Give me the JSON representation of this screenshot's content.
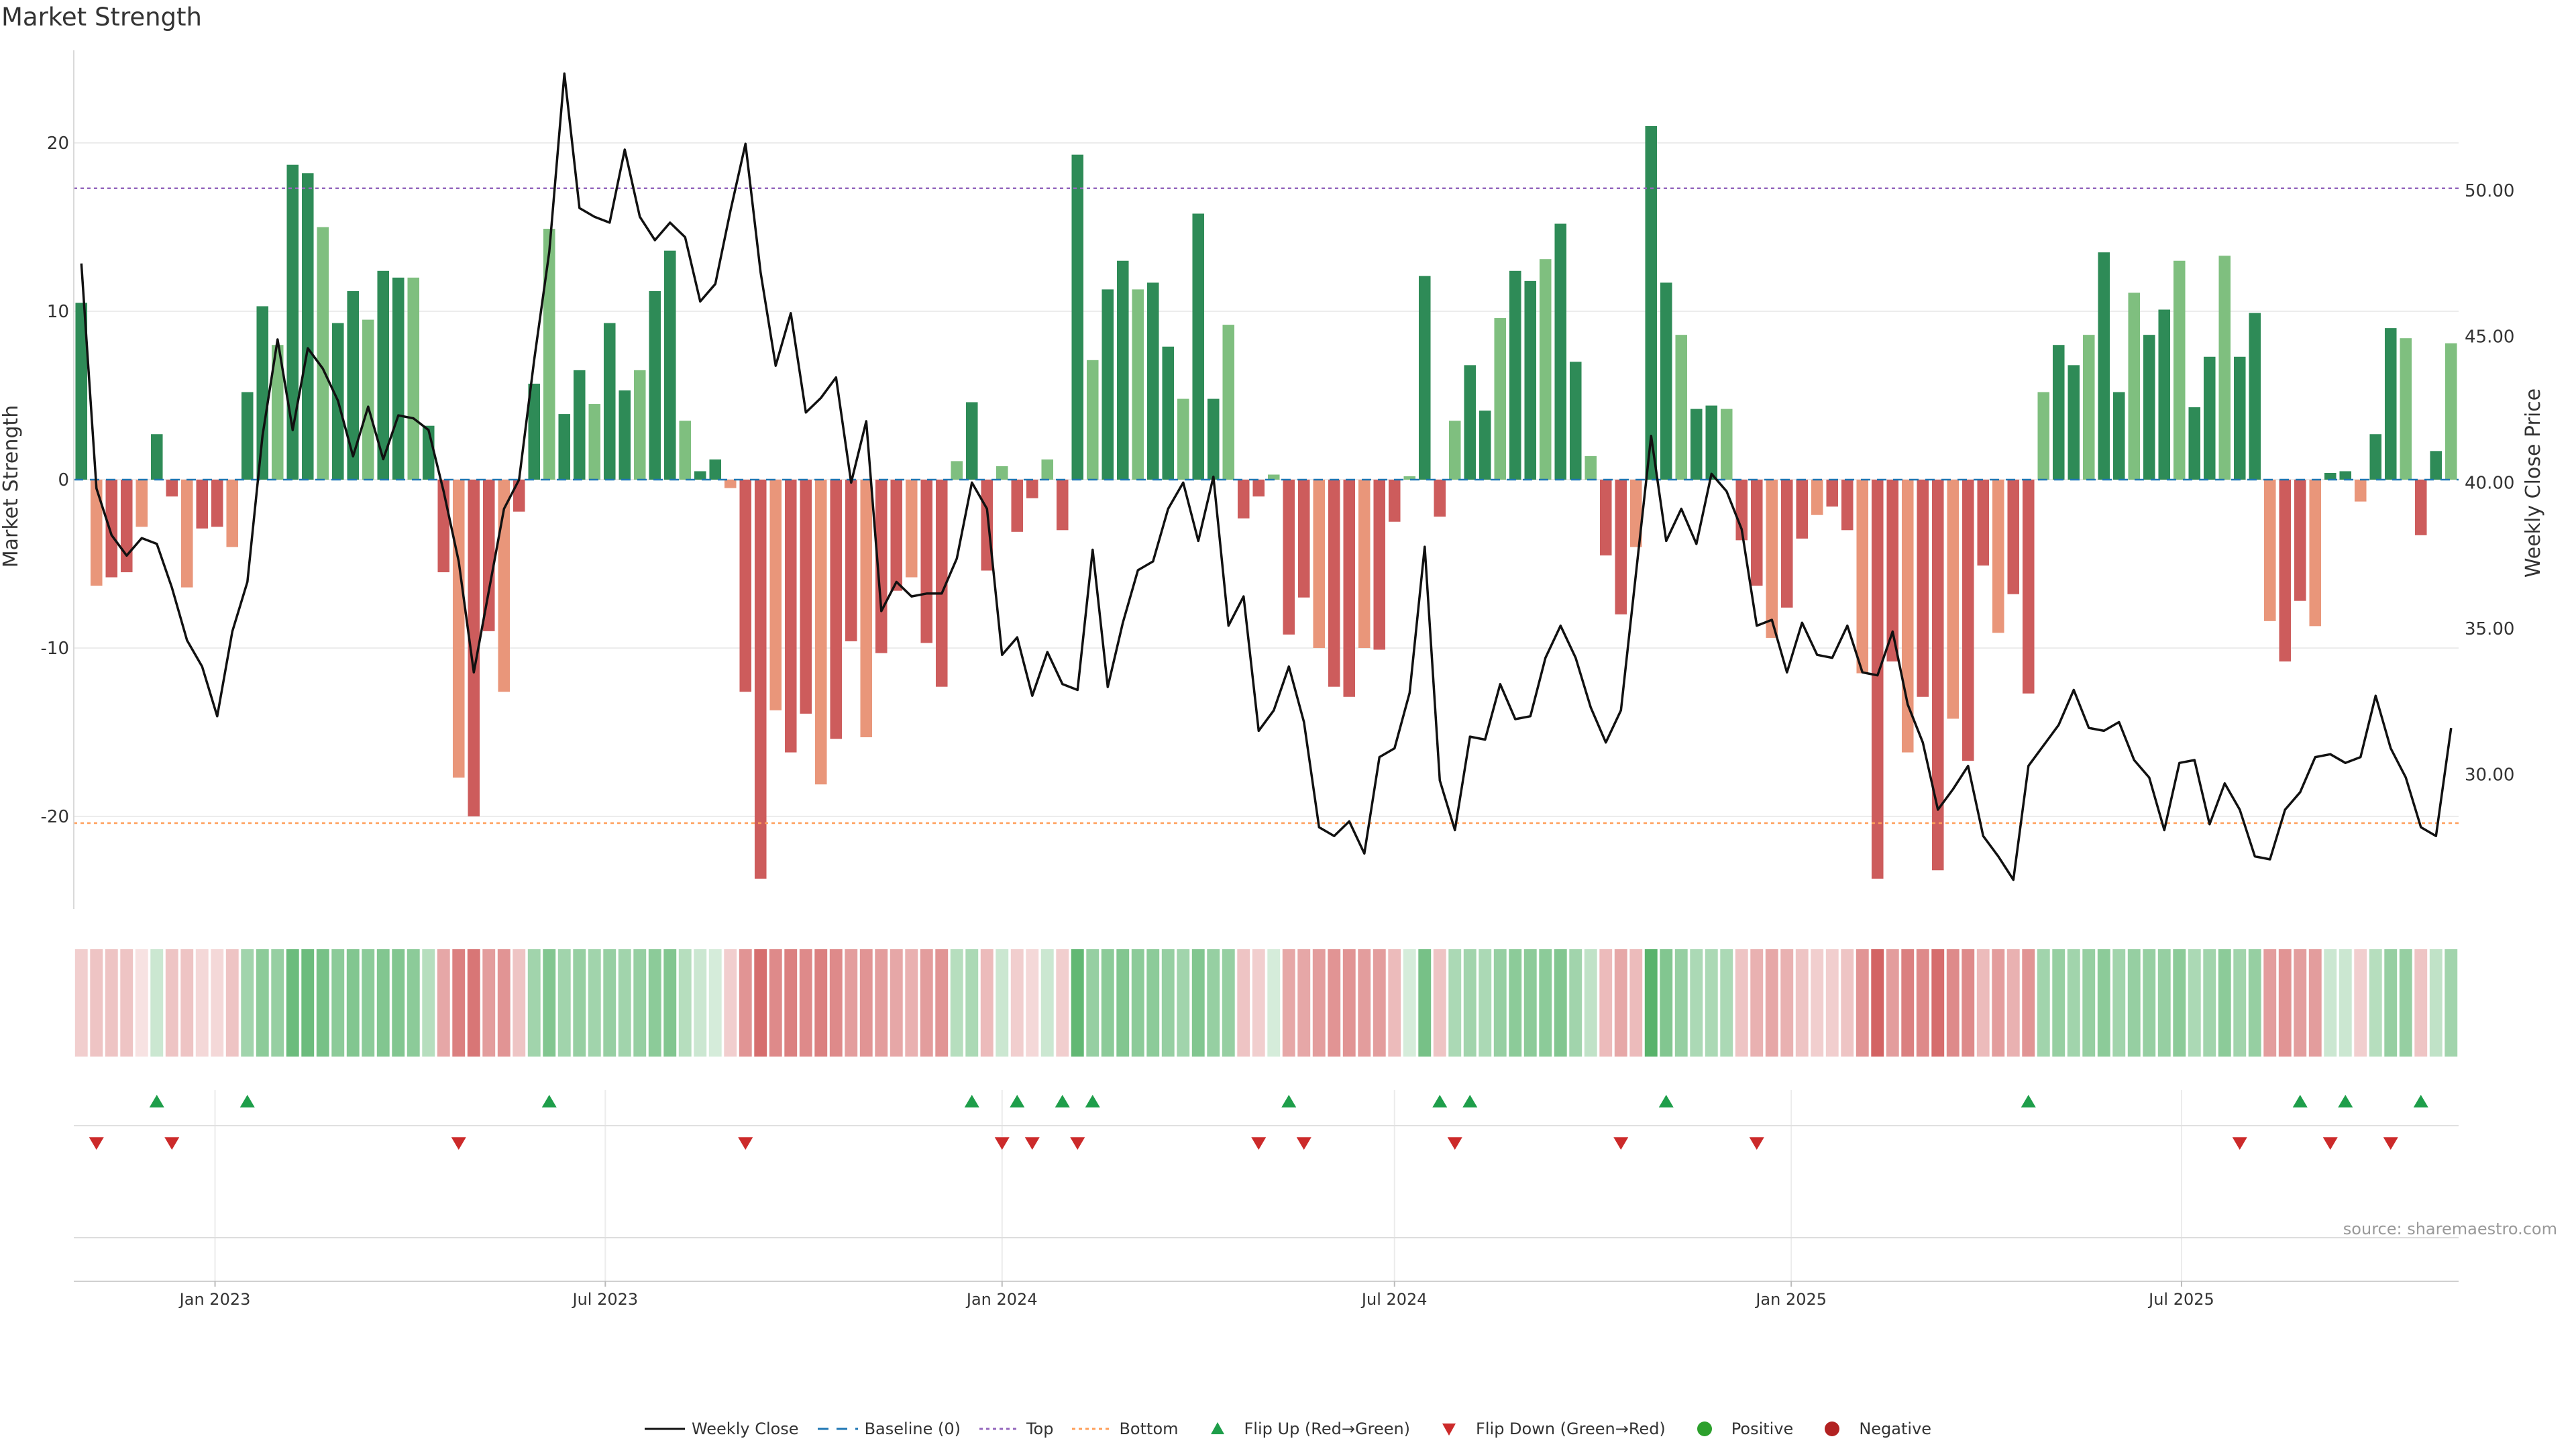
{
  "title": "Market Strength",
  "source": "source: sharemaestro.com",
  "colors": {
    "green_dark": "#2e8b57",
    "green_light": "#7fbf7f",
    "red_dark": "#cd5c5c",
    "red_light": "#e9967a",
    "line": "#111111",
    "baseline": "#1f77b4",
    "top": "#9467bd",
    "bottom": "#ff9f5a",
    "flip_up": "#1e9e4a",
    "flip_down": "#cc2a2a",
    "positive": "#2ca02c",
    "negative": "#b22222"
  },
  "legend": [
    {
      "key": "line",
      "label": "Weekly Close"
    },
    {
      "key": "baseline",
      "label": "Baseline (0)"
    },
    {
      "key": "top",
      "label": "Top"
    },
    {
      "key": "bottom",
      "label": "Bottom"
    },
    {
      "key": "flip_up",
      "label": "Flip Up (Red→Green)"
    },
    {
      "key": "flip_down",
      "label": "Flip Down (Green→Red)"
    },
    {
      "key": "positive",
      "label": "Positive"
    },
    {
      "key": "negative",
      "label": "Negative"
    }
  ],
  "chart_data": {
    "type": "bar",
    "xlabel": "",
    "ylabel": "Market Strength",
    "y2label": "Weekly Close Price",
    "ylim": [
      -25.5,
      25.5
    ],
    "y2lim": [
      25.4,
      54.8
    ],
    "yticks": [
      -20,
      -10,
      0,
      10,
      20
    ],
    "y2ticks": [
      "30.00",
      "35.00",
      "40.00",
      "45.00",
      "50.00"
    ],
    "y2tick_values": [
      30,
      35,
      40,
      45,
      50
    ],
    "top_line": 17.3,
    "bottom_line": -20.4,
    "grid": true,
    "x_start": "2022-10-31",
    "week_days": 7,
    "xticks": [
      "Jan 2023",
      "Jul 2023",
      "Jan 2024",
      "Jul 2024",
      "Jan 2025",
      "Jul 2025"
    ],
    "xtick_dates": [
      "2023-01-01",
      "2023-07-01",
      "2024-01-01",
      "2024-07-01",
      "2025-01-01",
      "2025-07-01"
    ],
    "strength": [
      10.5,
      -6.3,
      -5.8,
      -5.5,
      -2.8,
      2.7,
      -1.0,
      -6.4,
      -2.9,
      -2.8,
      -4.0,
      5.2,
      10.3,
      8.0,
      18.7,
      18.2,
      15.0,
      9.3,
      11.2,
      9.5,
      12.4,
      12.0,
      12.0,
      3.2,
      -5.5,
      -17.7,
      -20.0,
      -9.0,
      -12.6,
      -1.9,
      5.7,
      14.9,
      3.9,
      6.5,
      4.5,
      9.3,
      5.3,
      6.5,
      11.2,
      13.6,
      3.5,
      0.5,
      1.2,
      -0.5,
      -12.6,
      -23.7,
      -13.7,
      -16.2,
      -13.9,
      -18.1,
      -15.4,
      -9.6,
      -15.3,
      -10.3,
      -6.6,
      -5.8,
      -9.7,
      -12.3,
      1.1,
      4.6,
      -5.4,
      0.8,
      -3.1,
      -1.1,
      1.2,
      -3.0,
      19.3,
      7.1,
      11.3,
      13.0,
      11.3,
      11.7,
      7.9,
      4.8,
      15.8,
      4.8,
      9.2,
      -2.3,
      -1.0,
      0.3,
      -9.2,
      -7.0,
      -10.0,
      -12.3,
      -12.9,
      -10.0,
      -10.1,
      -2.5,
      0.2,
      12.1,
      -2.2,
      3.5,
      6.8,
      4.1,
      9.6,
      12.4,
      11.8,
      13.1,
      15.2,
      7.0,
      1.4,
      -4.5,
      -8.0,
      -4.0,
      21.0,
      11.7,
      8.6,
      4.2,
      4.4,
      4.2,
      -3.6,
      -6.3,
      -9.4,
      -7.6,
      -3.5,
      -2.1,
      -1.6,
      -3.0,
      -11.5,
      -23.7,
      -10.8,
      -16.2,
      -12.9,
      -23.2,
      -14.2,
      -16.7,
      -5.1,
      -9.1,
      -6.8,
      -12.7,
      5.2,
      8.0,
      6.8,
      8.6,
      13.5,
      5.2,
      11.1,
      8.6,
      10.1,
      13.0,
      4.3,
      7.3,
      13.3,
      7.3,
      9.9,
      -8.4,
      -10.8,
      -7.2,
      -8.7,
      0.4,
      0.5,
      -1.3,
      2.7,
      9.0,
      8.4,
      -3.3,
      1.7,
      8.1
    ],
    "close": [
      47.5,
      39.8,
      38.2,
      37.5,
      38.1,
      37.9,
      36.4,
      34.6,
      33.7,
      32.0,
      34.9,
      36.6,
      41.6,
      44.9,
      41.8,
      44.6,
      43.9,
      42.8,
      40.9,
      42.6,
      40.8,
      42.3,
      42.2,
      41.8,
      39.7,
      37.3,
      33.5,
      36.3,
      39.1,
      40.1,
      44.2,
      47.9,
      54.0,
      49.4,
      49.1,
      48.9,
      51.4,
      49.1,
      48.3,
      48.9,
      48.4,
      46.2,
      46.8,
      49.3,
      51.6,
      47.2,
      44.0,
      45.8,
      42.4,
      42.9,
      43.6,
      40.0,
      42.1,
      35.6,
      36.6,
      36.1,
      36.2,
      36.2,
      37.4,
      40.0,
      39.1,
      34.1,
      34.7,
      32.7,
      34.2,
      33.1,
      32.9,
      37.7,
      33.0,
      35.2,
      37.0,
      37.3,
      39.1,
      40.0,
      38.0,
      40.2,
      35.1,
      36.1,
      31.5,
      32.2,
      33.7,
      31.8,
      28.2,
      27.9,
      28.4,
      27.3,
      30.6,
      30.9,
      32.8,
      37.8,
      29.8,
      28.1,
      31.3,
      31.2,
      33.1,
      31.9,
      32.0,
      34.0,
      35.1,
      34.0,
      32.3,
      31.1,
      32.2,
      36.9,
      41.6,
      38.0,
      39.1,
      37.9,
      40.3,
      39.7,
      38.4,
      35.1,
      35.3,
      33.5,
      35.2,
      34.1,
      34.0,
      35.1,
      33.5,
      33.4,
      34.9,
      32.4,
      31.1,
      28.8,
      29.5,
      30.3,
      27.9,
      27.2,
      26.4,
      30.3,
      31.0,
      31.7,
      32.9,
      31.6,
      31.5,
      31.8,
      30.5,
      29.9,
      28.1,
      30.4,
      30.5,
      28.3,
      29.7,
      28.8,
      27.2,
      27.1,
      28.8,
      29.4,
      30.6,
      30.7,
      30.4,
      30.6,
      32.7,
      30.9,
      29.9,
      28.2,
      27.9,
      31.6
    ],
    "heat": [
      -0.25,
      -0.3,
      -0.3,
      -0.3,
      -0.15,
      0.25,
      -0.3,
      -0.3,
      -0.2,
      -0.2,
      -0.3,
      0.45,
      0.55,
      0.5,
      0.7,
      0.7,
      0.65,
      0.55,
      0.6,
      0.55,
      0.6,
      0.6,
      0.55,
      0.35,
      -0.45,
      -0.65,
      -0.7,
      -0.5,
      -0.55,
      -0.3,
      0.45,
      0.6,
      0.45,
      0.5,
      0.45,
      0.5,
      0.45,
      0.5,
      0.55,
      0.6,
      0.35,
      0.25,
      0.2,
      -0.25,
      -0.55,
      -0.75,
      -0.6,
      -0.65,
      -0.6,
      -0.65,
      -0.6,
      -0.5,
      -0.55,
      -0.5,
      -0.45,
      -0.4,
      -0.5,
      -0.55,
      0.35,
      0.4,
      -0.35,
      0.25,
      -0.25,
      -0.2,
      0.25,
      -0.25,
      0.75,
      0.5,
      0.55,
      0.6,
      0.55,
      0.55,
      0.5,
      0.45,
      0.6,
      0.5,
      0.5,
      -0.3,
      -0.25,
      0.2,
      -0.45,
      -0.45,
      -0.5,
      -0.55,
      -0.55,
      -0.5,
      -0.5,
      -0.35,
      0.2,
      0.65,
      -0.3,
      0.4,
      0.45,
      0.4,
      0.5,
      0.55,
      0.55,
      0.55,
      0.6,
      0.45,
      0.3,
      -0.35,
      -0.45,
      -0.35,
      0.8,
      0.6,
      0.5,
      0.4,
      0.4,
      0.4,
      -0.3,
      -0.4,
      -0.45,
      -0.4,
      -0.3,
      -0.25,
      -0.25,
      -0.3,
      -0.55,
      -0.8,
      -0.5,
      -0.65,
      -0.6,
      -0.75,
      -0.6,
      -0.6,
      -0.35,
      -0.5,
      -0.4,
      -0.55,
      0.45,
      0.5,
      0.45,
      0.5,
      0.55,
      0.45,
      0.5,
      0.5,
      0.5,
      0.55,
      0.4,
      0.45,
      0.55,
      0.45,
      0.5,
      -0.5,
      -0.55,
      -0.5,
      -0.5,
      0.25,
      0.25,
      -0.25,
      0.35,
      0.5,
      0.5,
      -0.3,
      0.3,
      0.45
    ],
    "flip_up_weeks": [
      5,
      11,
      31,
      59,
      62,
      65,
      67,
      80,
      90,
      92,
      105,
      129,
      147,
      150,
      155
    ],
    "flip_down_weeks": [
      1,
      6,
      25,
      44,
      61,
      63,
      66,
      78,
      81,
      91,
      102,
      111,
      143,
      149,
      153
    ],
    "panels": [
      "Market Strength",
      "heat strip",
      "flip markers",
      "empty band"
    ]
  }
}
